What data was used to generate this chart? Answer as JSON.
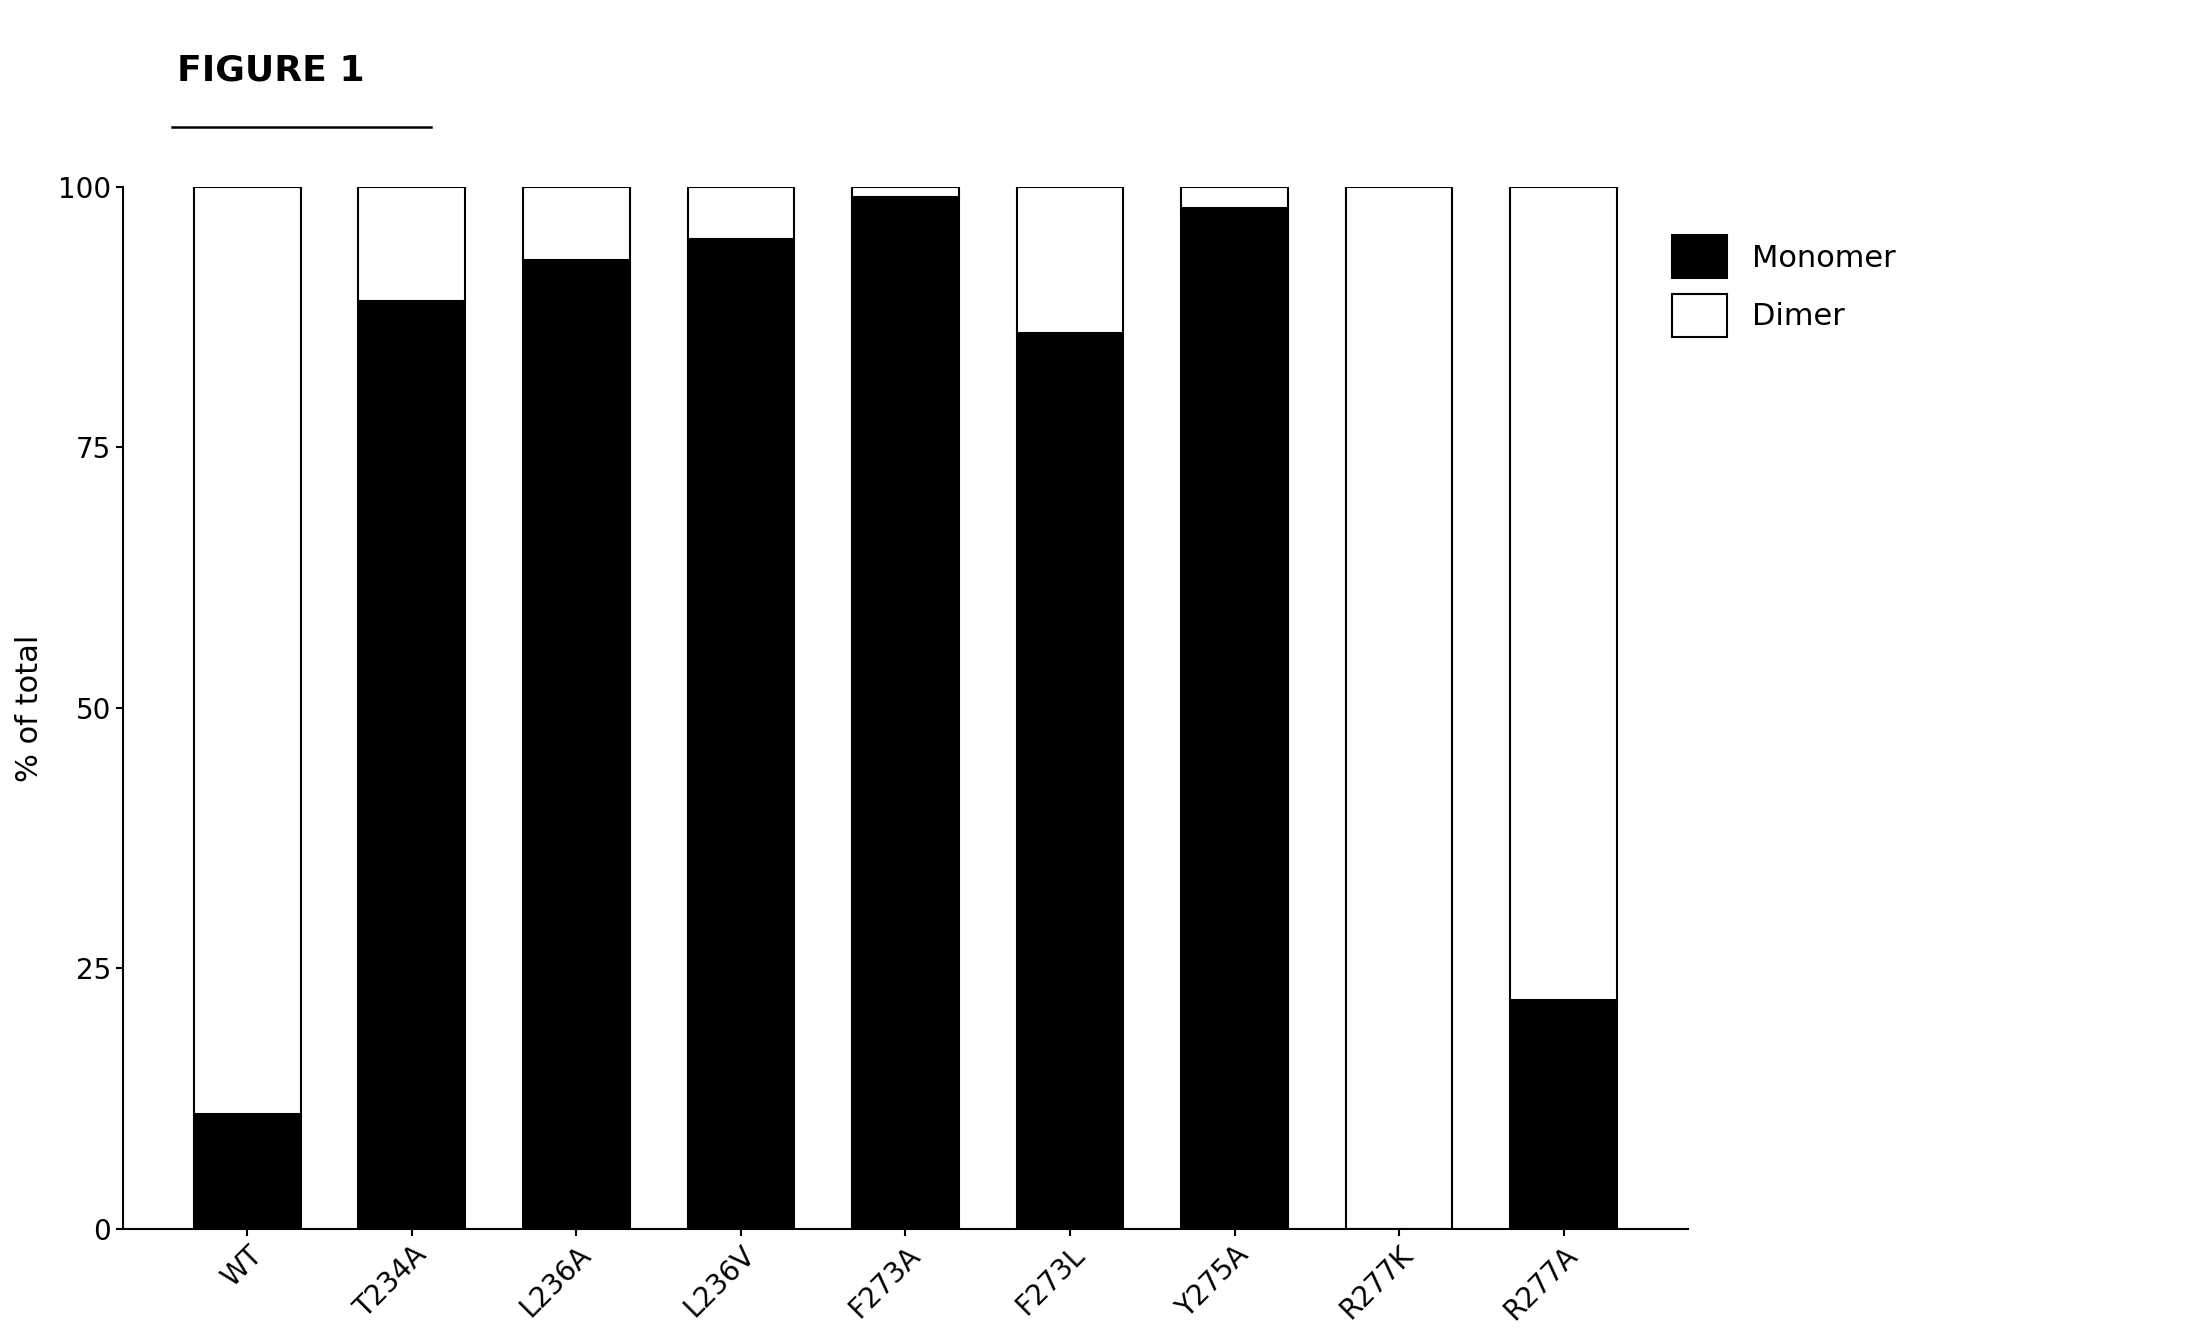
{
  "categories": [
    "WT",
    "T234A",
    "L236A",
    "L236V",
    "F273A",
    "F273L",
    "Y275A",
    "R277K",
    "R277A"
  ],
  "monomer": [
    11,
    89,
    93,
    95,
    99,
    86,
    98,
    0,
    22
  ],
  "dimer": [
    89,
    11,
    7,
    5,
    1,
    14,
    2,
    100,
    78
  ],
  "monomer_color": "#000000",
  "dimer_color": "#ffffff",
  "ylabel": "% of total",
  "ylim": [
    0,
    100
  ],
  "yticks": [
    0,
    25,
    50,
    75,
    100
  ],
  "title": "FIGURE 1",
  "legend_monomer": "Monomer",
  "legend_dimer": "Dimer",
  "bar_width": 0.65,
  "bar_edge_color": "#000000",
  "background_color": "#ffffff",
  "title_fontsize": 26,
  "axis_fontsize": 22,
  "tick_fontsize": 20,
  "legend_fontsize": 22
}
